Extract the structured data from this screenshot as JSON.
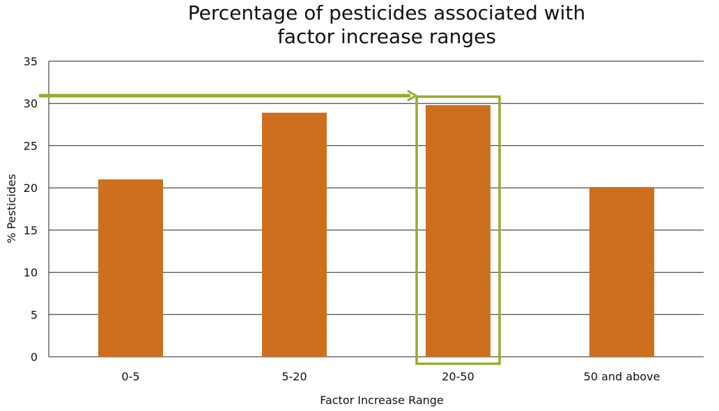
{
  "chart_data": {
    "type": "bar",
    "title_lines": [
      "Percentage of pesticides associated with",
      "factor increase ranges"
    ],
    "xlabel": "Factor Increase Range",
    "ylabel": "% Pesticides",
    "categories": [
      "0-5",
      "5-20",
      "20-50",
      "50 and above"
    ],
    "values": [
      21,
      28.9,
      29.8,
      20.1
    ],
    "ylim": [
      0,
      35
    ],
    "yticks": [
      0,
      5,
      10,
      15,
      20,
      25,
      30,
      35
    ],
    "grid": true,
    "highlight_category": "20-50",
    "annotation_arrow_y": 31,
    "colors": {
      "bar": "#CE6F1E",
      "highlight": "#9AAA2E",
      "grid": "#222222"
    }
  }
}
